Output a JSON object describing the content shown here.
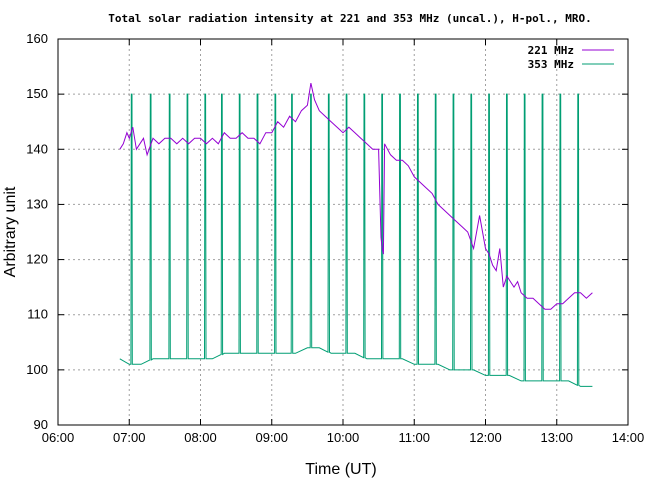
{
  "chart_data": {
    "type": "line",
    "title": "Total solar radiation intensity at 221 and 353 MHz (uncal.), H-pol., MRO.",
    "xlabel": "Time (UT)",
    "ylabel": "Arbitrary unit",
    "xlim": [
      "06:00",
      "14:00"
    ],
    "ylim": [
      90,
      160
    ],
    "x_ticks": [
      "06:00",
      "07:00",
      "08:00",
      "09:00",
      "10:00",
      "11:00",
      "12:00",
      "13:00",
      "14:00"
    ],
    "y_ticks": [
      90,
      100,
      110,
      120,
      130,
      140,
      150,
      160
    ],
    "grid": true,
    "legend_position": "top-right",
    "series": [
      {
        "name": "221 MHz",
        "color": "#9400d3",
        "x": [
          "06:52",
          "06:55",
          "06:58",
          "07:00",
          "07:03",
          "07:06",
          "07:09",
          "07:12",
          "07:15",
          "07:20",
          "07:25",
          "07:30",
          "07:35",
          "07:40",
          "07:45",
          "07:50",
          "07:55",
          "08:00",
          "08:05",
          "08:10",
          "08:15",
          "08:20",
          "08:25",
          "08:30",
          "08:35",
          "08:40",
          "08:45",
          "08:50",
          "08:55",
          "09:00",
          "09:05",
          "09:10",
          "09:15",
          "09:20",
          "09:25",
          "09:30",
          "09:33",
          "09:36",
          "09:40",
          "09:45",
          "09:50",
          "09:55",
          "10:00",
          "10:05",
          "10:10",
          "10:15",
          "10:20",
          "10:25",
          "10:30",
          "10:32",
          "10:33",
          "10:34",
          "10:35",
          "10:40",
          "10:45",
          "10:50",
          "10:55",
          "11:00",
          "11:05",
          "11:10",
          "11:15",
          "11:20",
          "11:25",
          "11:30",
          "11:35",
          "11:40",
          "11:45",
          "11:50",
          "11:55",
          "12:00",
          "12:03",
          "12:06",
          "12:09",
          "12:12",
          "12:15",
          "12:18",
          "12:21",
          "12:24",
          "12:27",
          "12:30",
          "12:35",
          "12:40",
          "12:45",
          "12:50",
          "12:55",
          "13:00",
          "13:05",
          "13:10",
          "13:15",
          "13:20",
          "13:25",
          "13:30"
        ],
        "y": [
          140,
          141,
          143,
          142,
          144,
          140,
          141,
          142,
          139,
          142,
          141,
          142,
          142,
          141,
          142,
          141,
          142,
          142,
          141,
          142,
          141,
          143,
          142,
          142,
          143,
          142,
          142,
          141,
          143,
          143,
          145,
          144,
          146,
          145,
          147,
          148,
          152,
          149,
          147,
          146,
          145,
          144,
          143,
          144,
          143,
          142,
          141,
          140,
          140,
          124,
          122,
          121,
          141,
          139,
          138,
          138,
          137,
          135,
          134,
          133,
          132,
          130,
          129,
          128,
          127,
          126,
          125,
          122,
          128,
          122,
          121,
          119,
          118,
          122,
          115,
          117,
          116,
          115,
          116,
          114,
          113,
          113,
          112,
          111,
          111,
          112,
          112,
          113,
          114,
          114,
          113,
          114
        ]
      },
      {
        "name": "353 MHz",
        "color": "#009e73",
        "x": [
          "06:52",
          "07:00",
          "07:10",
          "07:20",
          "07:30",
          "07:40",
          "07:50",
          "08:00",
          "08:10",
          "08:20",
          "08:30",
          "08:40",
          "08:50",
          "09:00",
          "09:10",
          "09:20",
          "09:30",
          "09:40",
          "09:50",
          "10:00",
          "10:10",
          "10:20",
          "10:30",
          "10:40",
          "10:50",
          "11:00",
          "11:10",
          "11:20",
          "11:30",
          "11:40",
          "11:50",
          "12:00",
          "12:10",
          "12:20",
          "12:30",
          "12:40",
          "12:50",
          "13:00",
          "13:10",
          "13:20",
          "13:30"
        ],
        "y": [
          102,
          101,
          101,
          102,
          102,
          102,
          102,
          102,
          102,
          103,
          103,
          103,
          103,
          103,
          103,
          103,
          104,
          104,
          103,
          103,
          103,
          102,
          102,
          102,
          102,
          101,
          101,
          101,
          100,
          100,
          100,
          99,
          99,
          99,
          98,
          98,
          98,
          98,
          98,
          97,
          97
        ],
        "spikes": {
          "times": [
            "07:02",
            "07:18",
            "07:34",
            "07:49",
            "08:04",
            "08:18",
            "08:33",
            "08:48",
            "09:03",
            "09:17",
            "09:33",
            "09:48",
            "10:03",
            "10:18",
            "10:33",
            "10:48",
            "11:03",
            "11:18",
            "11:33",
            "11:48",
            "12:03",
            "12:18",
            "12:33",
            "12:48",
            "13:03",
            "13:18"
          ],
          "peak": 150
        }
      }
    ]
  }
}
